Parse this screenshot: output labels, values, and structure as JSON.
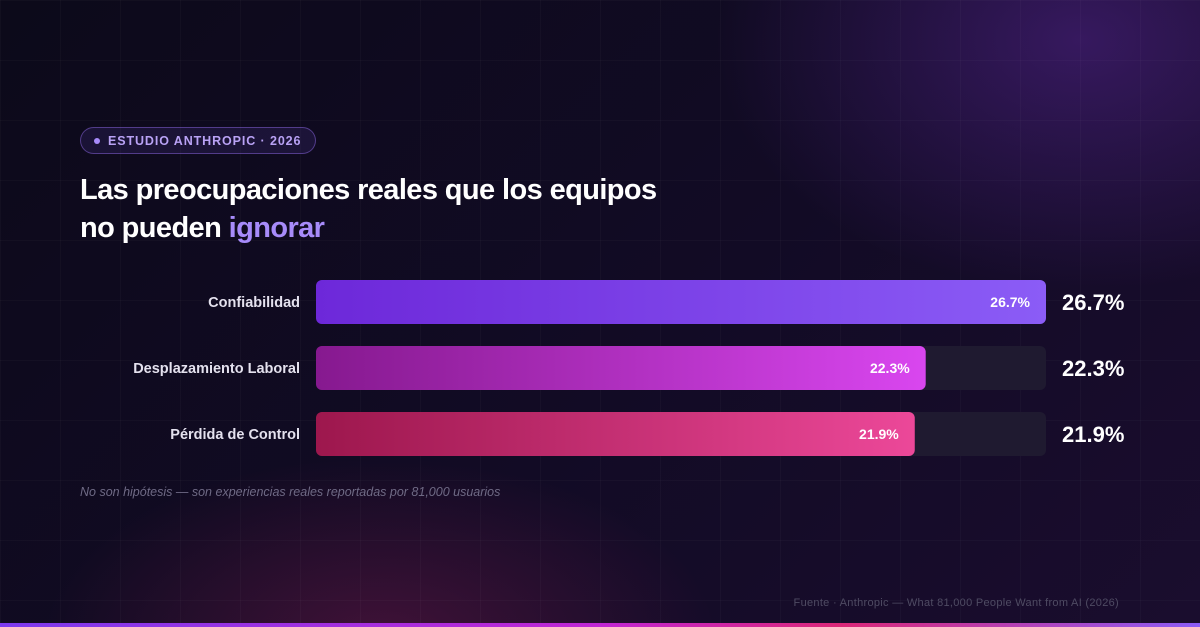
{
  "badge": {
    "label": "ESTUDIO ANTHROPIC · 2026"
  },
  "title": {
    "line1": "Las preocupaciones reales que los equipos",
    "line2_prefix": "no pueden ",
    "line2_accent": "ignorar"
  },
  "footnote": "No son hipótesis — son experiencias reales reportadas por 81,000 usuarios",
  "source": "Fuente · Anthropic — What 81,000 People Want from AI (2026)",
  "colors": {
    "accent": "#a78bfa",
    "track": "#1f1a30",
    "series": [
      {
        "from": "#6d28d9",
        "to": "#8b5cf6"
      },
      {
        "from": "#86198f",
        "to": "#d946ef"
      },
      {
        "from": "#9d174d",
        "to": "#ec4899"
      }
    ]
  },
  "chart_data": {
    "type": "bar",
    "orientation": "horizontal",
    "categories": [
      "Confiabilidad",
      "Desplazamiento Laboral",
      "Pérdida de Control"
    ],
    "values": [
      26.7,
      22.3,
      21.9
    ],
    "value_labels": [
      "26.7%",
      "22.3%",
      "21.9%"
    ],
    "xlim": [
      0,
      26.7
    ],
    "title": "Las preocupaciones reales que los equipos no pueden ignorar",
    "xlabel": "",
    "ylabel": "",
    "grid": false,
    "legend": "none"
  }
}
